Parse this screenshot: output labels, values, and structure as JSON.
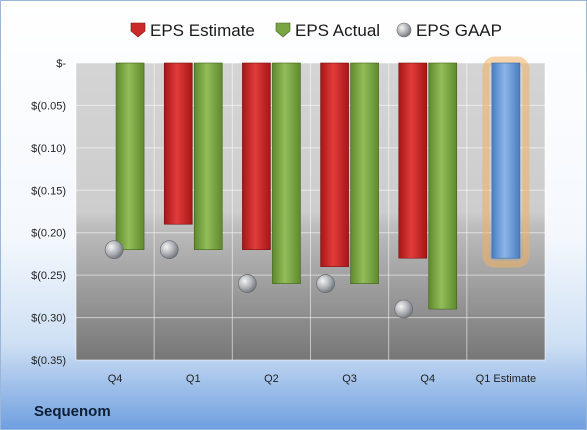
{
  "company": "Sequenom",
  "chart_data": {
    "type": "bar",
    "categories": [
      "Q4",
      "Q1",
      "Q2",
      "Q3",
      "Q4",
      "Q1 Estimate"
    ],
    "series": [
      {
        "name": "EPS Estimate",
        "values": [
          null,
          -0.19,
          -0.22,
          -0.24,
          -0.23,
          null
        ],
        "color": "#cc2a2a"
      },
      {
        "name": "EPS Actual",
        "values": [
          -0.22,
          -0.22,
          -0.26,
          -0.26,
          -0.29,
          null
        ],
        "color": "#7aa641"
      },
      {
        "name": "EPS GAAP",
        "values": [
          -0.22,
          -0.22,
          -0.26,
          -0.26,
          -0.29,
          null
        ],
        "color": "#b8bcc2"
      }
    ],
    "estimate_next": {
      "category": "Q1 Estimate",
      "value": -0.23,
      "color": "#6b9bd8",
      "glow": "#f0b060"
    },
    "ylim": [
      -0.35,
      0
    ],
    "yticks": [
      0,
      -0.05,
      -0.1,
      -0.15,
      -0.2,
      -0.25,
      -0.3,
      -0.35
    ],
    "ytick_labels": [
      "$-",
      "$(0.05)",
      "$(0.10)",
      "$(0.15)",
      "$(0.20)",
      "$(0.25)",
      "$(0.30)",
      "$(0.35)"
    ],
    "grid": true,
    "legend_position": "top"
  }
}
